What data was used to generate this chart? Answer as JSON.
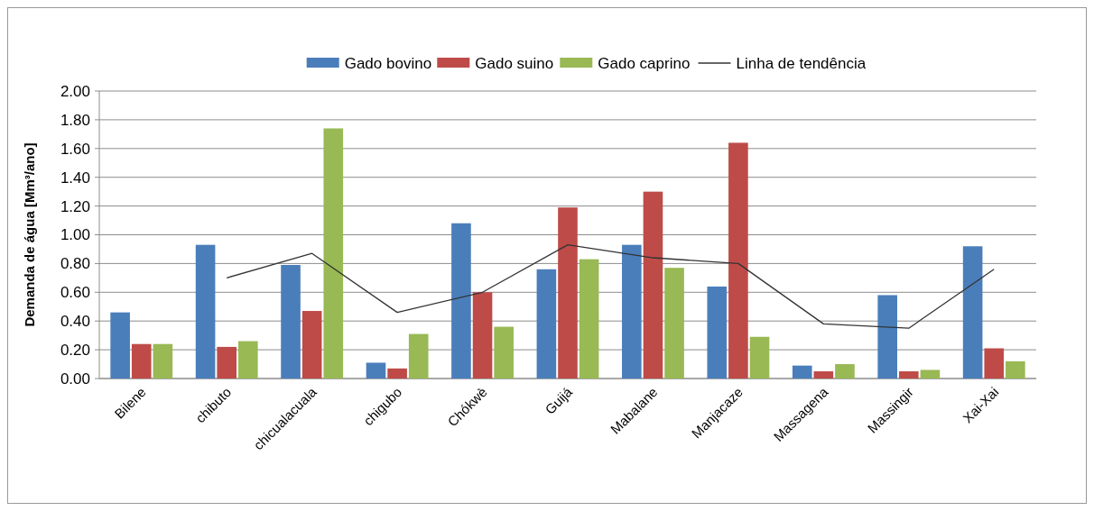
{
  "chart_data": {
    "type": "bar",
    "ylabel": "Demanda de água [Mm³/ano]",
    "categories": [
      "Bilene",
      "chibuto",
      "chicualacuala",
      "chigubo",
      "Chókwè",
      "Guijá",
      "Mabalane",
      "Manjacaze",
      "Massagena",
      "Massingir",
      "Xai-Xai"
    ],
    "series": [
      {
        "name": "Gado bovino",
        "color": "#4a7ebb",
        "values": [
          0.46,
          0.93,
          0.79,
          0.11,
          1.08,
          0.76,
          0.93,
          0.64,
          0.09,
          0.58,
          0.92
        ]
      },
      {
        "name": "Gado suino",
        "color": "#be4b48",
        "values": [
          0.24,
          0.22,
          0.47,
          0.07,
          0.6,
          1.19,
          1.3,
          1.64,
          0.05,
          0.05,
          0.21
        ]
      },
      {
        "name": "Gado caprino",
        "color": "#98b954",
        "values": [
          0.24,
          0.26,
          1.74,
          0.31,
          0.36,
          0.83,
          0.77,
          0.29,
          0.1,
          0.06,
          0.12
        ]
      },
      {
        "name": "Linha de tendência",
        "type": "line",
        "color": "#333333",
        "values": [
          null,
          0.7,
          0.87,
          0.46,
          0.6,
          0.93,
          0.84,
          0.8,
          0.38,
          0.35,
          0.76
        ]
      }
    ],
    "ylim": [
      0,
      2
    ],
    "yticks": [
      {
        "value": 0,
        "label": "0.00"
      },
      {
        "value": 0.2,
        "label": "0.20"
      },
      {
        "value": 0.4,
        "label": "0.40"
      },
      {
        "value": 0.6,
        "label": "0.60"
      },
      {
        "value": 0.8,
        "label": "0.80"
      },
      {
        "value": 1,
        "label": "1.00"
      },
      {
        "value": 1.2,
        "label": "1.20"
      },
      {
        "value": 1.4,
        "label": "1.40"
      },
      {
        "value": 1.6,
        "label": "1.60"
      },
      {
        "value": 1.8,
        "label": "1.80"
      },
      {
        "value": 2,
        "label": "2.00"
      }
    ],
    "grid": "y",
    "legend": "top",
    "marker": "none"
  }
}
